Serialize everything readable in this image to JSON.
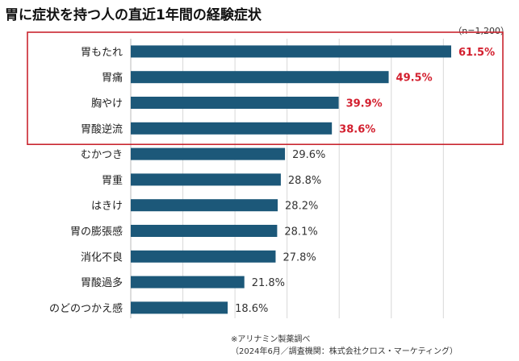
{
  "title": "胃に症状を持つ人の直近1年間の経験症状",
  "sample_size": "（n=1,200）",
  "notes": [
    "※アリナミン製薬調べ",
    "（2024年6月／調査機関：株式会社クロス・マーケティング）"
  ],
  "colors": {
    "bar": "#1c5879",
    "highlight_text": "#d3202f",
    "normal_text": "#333333",
    "frame": "#c9252f",
    "grid": "#d8d8d8"
  },
  "chart_data": {
    "type": "bar",
    "orientation": "horizontal",
    "title": "胃に症状を持つ人の直近1年間の経験症状",
    "unit": "%",
    "xlim": [
      0,
      65
    ],
    "grid": true,
    "categories": [
      "胃もたれ",
      "胃痛",
      "胸やけ",
      "胃酸逆流",
      "むかつき",
      "胃重",
      "はきけ",
      "胃の膨張感",
      "消化不良",
      "胃酸過多",
      "のどのつかえ感"
    ],
    "values": [
      61.5,
      49.5,
      39.9,
      38.6,
      29.6,
      28.8,
      28.2,
      28.1,
      27.8,
      21.8,
      18.6
    ],
    "value_labels": [
      "61.5%",
      "49.5%",
      "39.9%",
      "38.6%",
      "29.6%",
      "28.8%",
      "28.2%",
      "28.1%",
      "27.8%",
      "21.8%",
      "18.6%"
    ],
    "highlighted": [
      "胃もたれ",
      "胃痛",
      "胸やけ",
      "胃酸逆流"
    ]
  }
}
